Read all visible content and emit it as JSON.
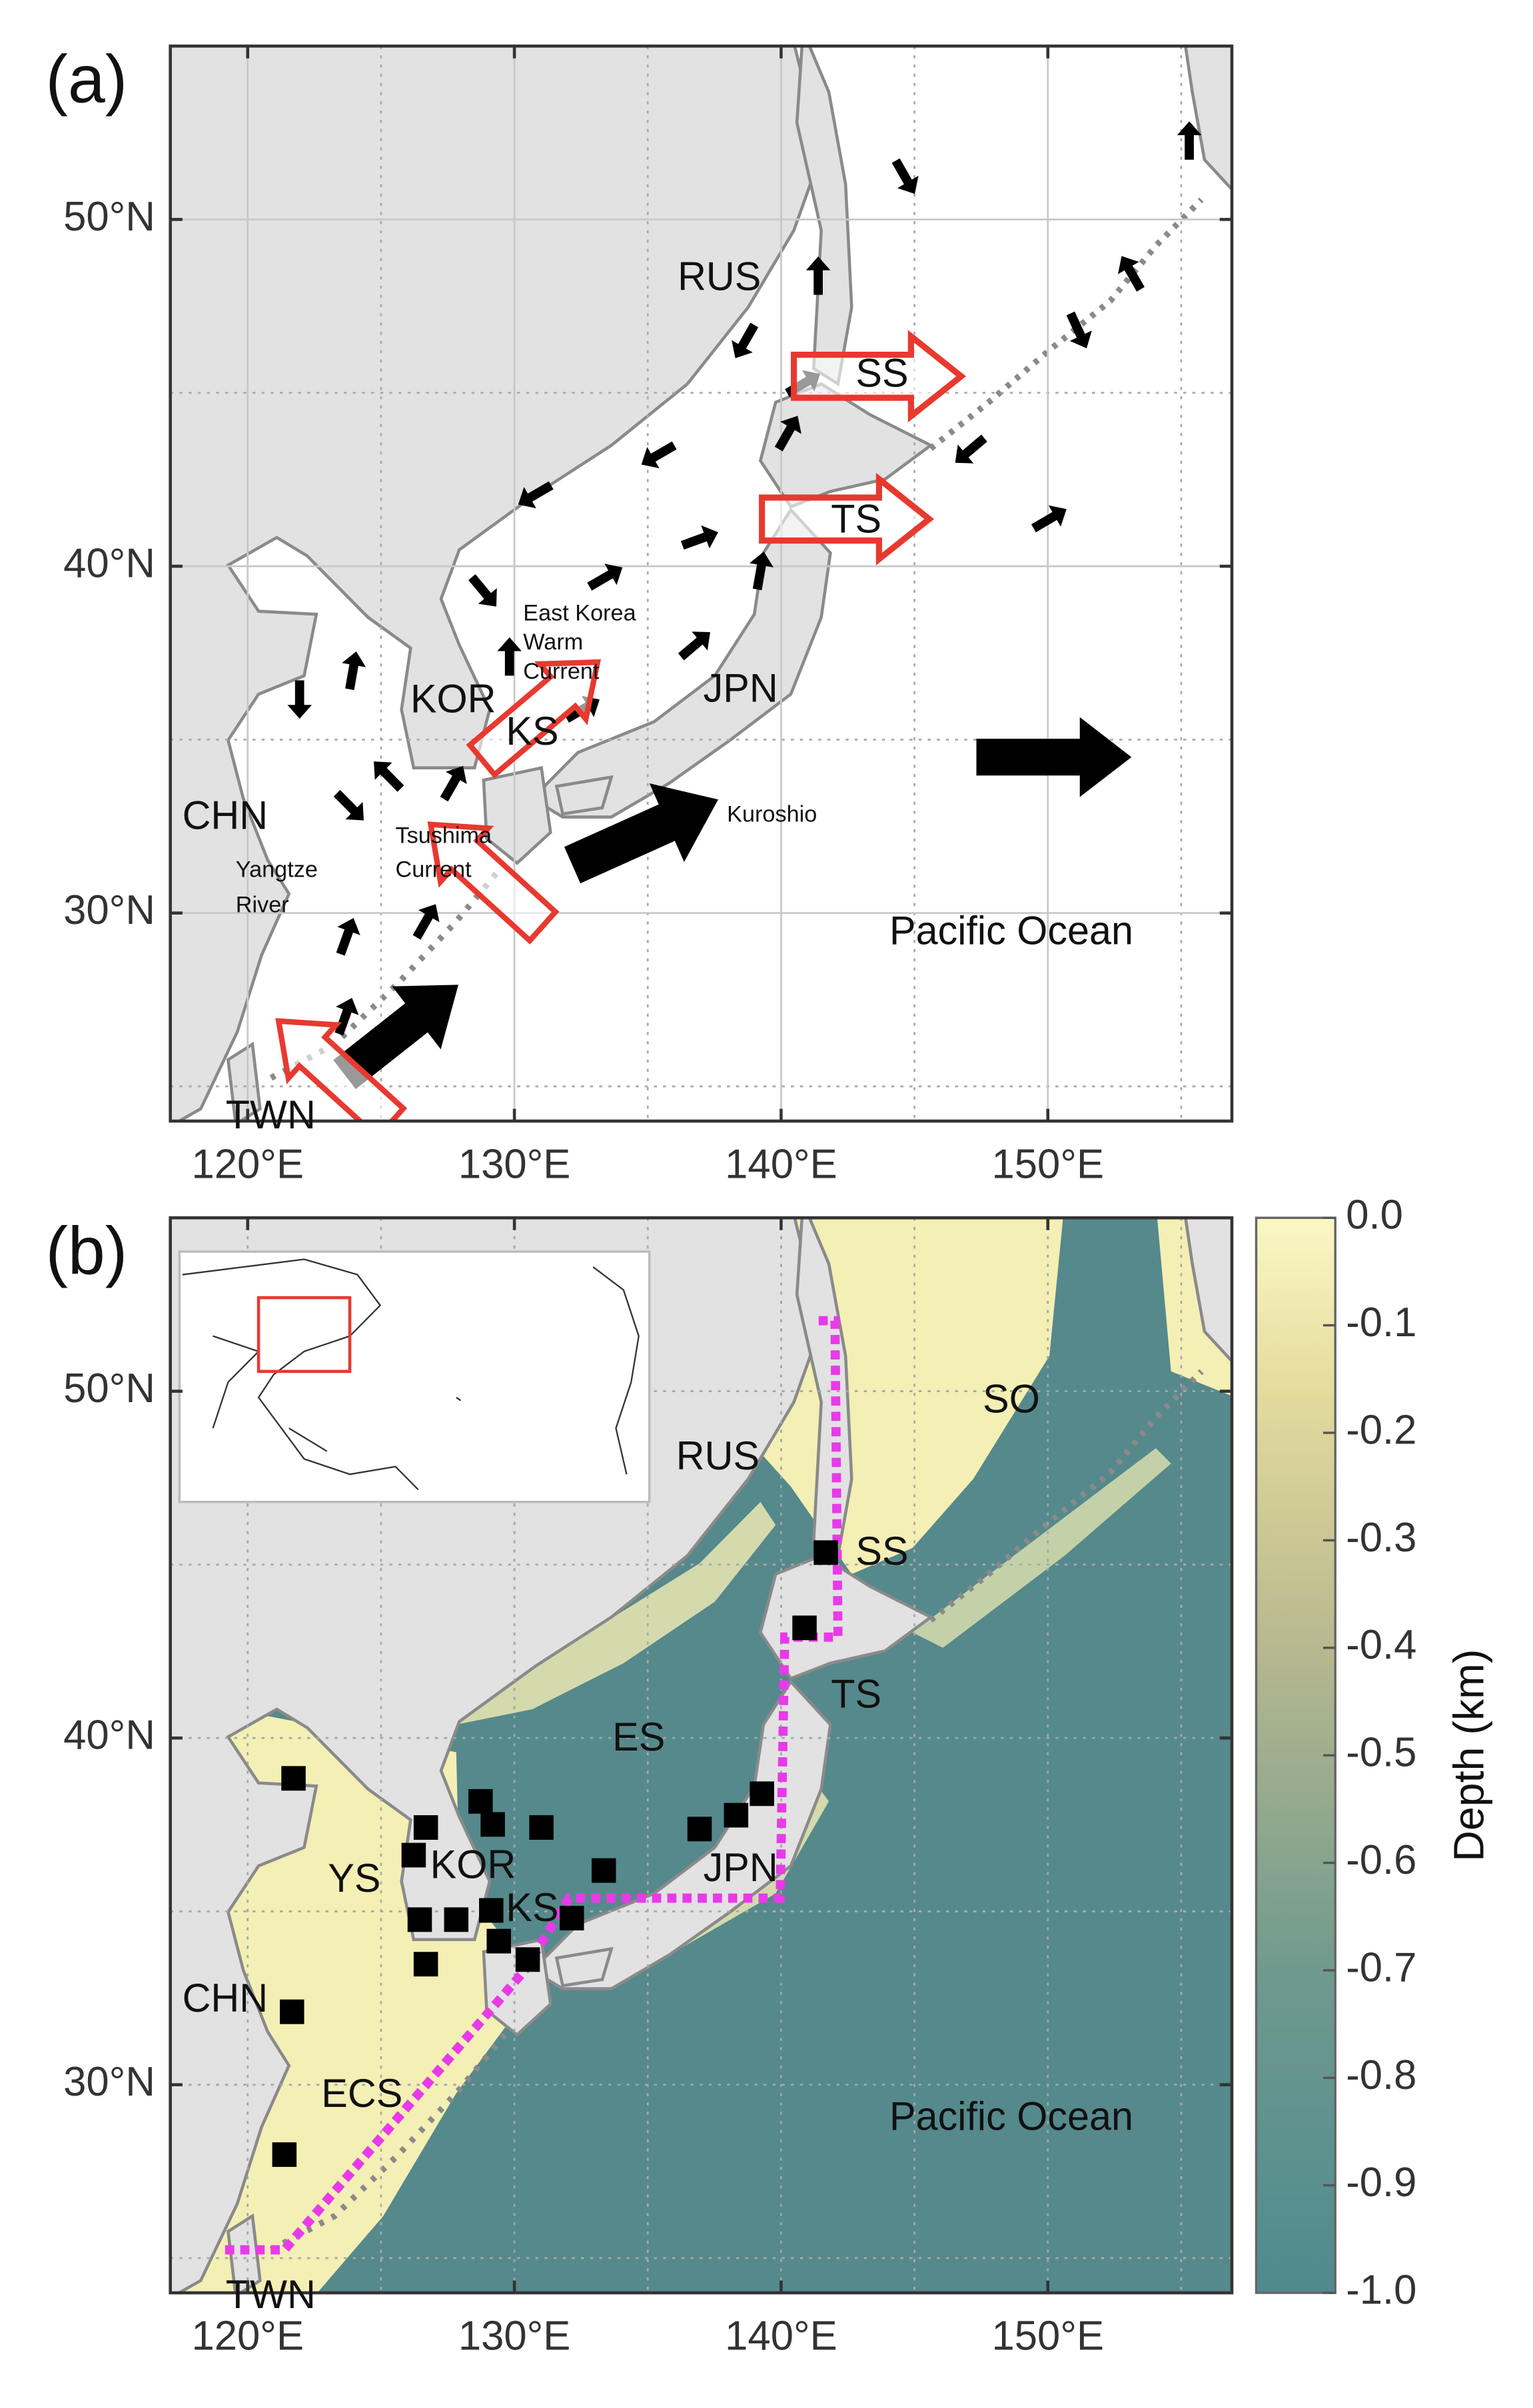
{
  "panel_a": {
    "label": "(a)",
    "lonlim": [
      117.1,
      156.9
    ],
    "latlim": [
      24,
      55
    ],
    "lon_ticks": [
      {
        "value": 120,
        "label": "120°E"
      },
      {
        "value": 130,
        "label": "130°E"
      },
      {
        "value": 140,
        "label": "140°E"
      },
      {
        "value": 150,
        "label": "150°E"
      }
    ],
    "lat_ticks": [
      {
        "value": 50,
        "label": "50°N"
      },
      {
        "value": 40,
        "label": "40°N"
      },
      {
        "value": 30,
        "label": "30°N"
      }
    ],
    "minor_lon": [
      125,
      135,
      145,
      155
    ],
    "minor_lat": [
      25,
      35,
      45
    ],
    "labels": {
      "rus": "RUS",
      "ss": "SS",
      "ts": "TS",
      "kor": "KOR",
      "ks": "KS",
      "jpn": "JPN",
      "chn": "CHN",
      "yangtze": [
        "Yangtze",
        "River"
      ],
      "ekwc": [
        "East Korea",
        "Warm",
        "Current"
      ],
      "tsushima": [
        "Tsushima",
        "Current"
      ],
      "kuroshio": "Kuroshio",
      "pacific": "Pacific Ocean",
      "twn": "TWN"
    }
  },
  "panel_b": {
    "label": "(b)",
    "lonlim": [
      117.1,
      156.9
    ],
    "latlim": [
      24,
      55
    ],
    "lon_ticks": [
      {
        "value": 120,
        "label": "120°E"
      },
      {
        "value": 130,
        "label": "130°E"
      },
      {
        "value": 140,
        "label": "140°E"
      },
      {
        "value": 150,
        "label": "150°E"
      }
    ],
    "lat_ticks": [
      {
        "value": 50,
        "label": "50°N"
      },
      {
        "value": 40,
        "label": "40°N"
      },
      {
        "value": 30,
        "label": "30°N"
      }
    ],
    "minor_lon": [
      125,
      135,
      145,
      155
    ],
    "minor_lat": [
      25,
      35,
      45
    ],
    "labels": {
      "rus": "RUS",
      "so": "SO",
      "ss": "SS",
      "ts": "TS",
      "es": "ES",
      "ys": "YS",
      "kor": "KOR",
      "ks": "KS",
      "jpn": "JPN",
      "chn": "CHN",
      "ecs": "ECS",
      "pacific": "Pacific Ocean",
      "twn": "TWN"
    },
    "colorbar": {
      "title": "Depth (km)",
      "lim": [
        -1,
        0
      ],
      "ticks": [
        {
          "value": 0,
          "label": "0.0"
        },
        -0.1,
        -0.2,
        -0.3,
        -0.4,
        -0.5,
        -0.6,
        -0.7,
        -0.8,
        -0.9,
        {
          "value": -1,
          "label": "-1.0"
        }
      ]
    }
  }
}
